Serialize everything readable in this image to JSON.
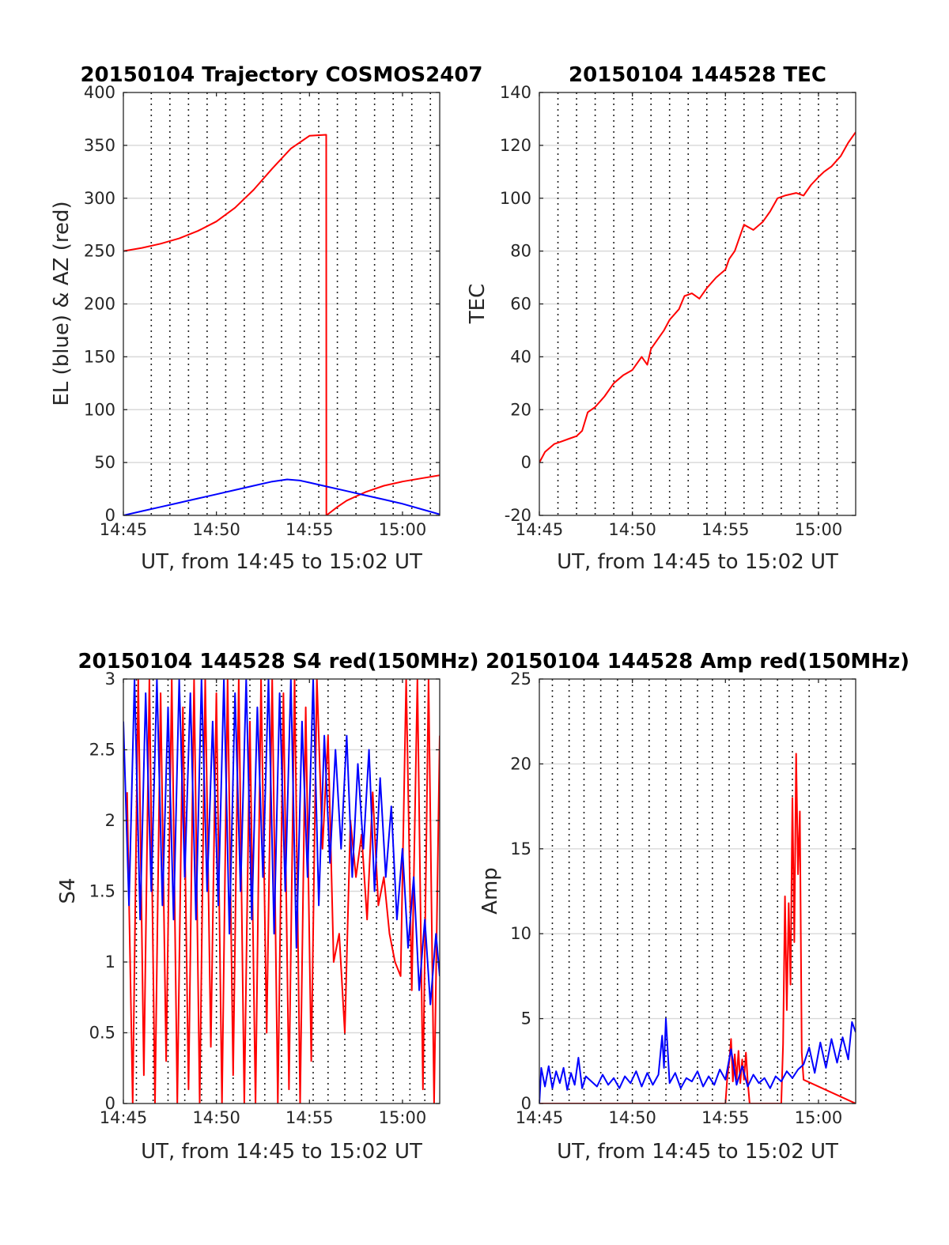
{
  "chart_data": [
    {
      "type": "line",
      "title": "20150104 Trajectory COSMOS2407",
      "xlabel": "UT, from 14:45 to 15:02 UT",
      "ylabel": "EL (blue) & AZ (red)",
      "xlim": [
        0,
        17
      ],
      "ylim": [
        0,
        400
      ],
      "xticks": [
        0,
        5,
        10,
        15
      ],
      "xticklabels": [
        "14:45",
        "14:50",
        "14:55",
        "15:00"
      ],
      "yticks": [
        0,
        50,
        100,
        150,
        200,
        250,
        300,
        350,
        400
      ],
      "yticklabels": [
        "0",
        "50",
        "100",
        "150",
        "200",
        "250",
        "300",
        "350",
        "400"
      ],
      "vgrid_minutes": [
        1.5,
        2.5,
        3.5,
        4.5,
        5.5,
        6.5,
        7.5,
        8.5,
        9.5,
        10.5,
        11.5,
        12.5,
        13.5,
        14.5,
        15.5,
        16.5
      ],
      "grid": true,
      "series": [
        {
          "color": "#ff0000",
          "x": [
            0,
            1,
            2,
            3,
            4,
            5,
            6,
            7,
            8,
            9,
            10,
            10.9,
            10.91,
            11.5,
            12,
            13,
            14,
            15,
            16,
            17
          ],
          "y": [
            250,
            253,
            257,
            262,
            269,
            278,
            291,
            308,
            328,
            347,
            359,
            360,
            0,
            8,
            14,
            22,
            28,
            32,
            35,
            38
          ]
        },
        {
          "color": "#0000ff",
          "x": [
            0,
            1,
            2,
            3,
            4,
            5,
            6,
            7,
            8,
            8.8,
            9.5,
            10,
            11,
            12,
            13,
            14,
            15,
            16,
            17
          ],
          "y": [
            0,
            4,
            8,
            12,
            16,
            20,
            24,
            28,
            32,
            34,
            33,
            31,
            27,
            23,
            19,
            15,
            11,
            6,
            1
          ]
        }
      ]
    },
    {
      "type": "line",
      "title": "20150104 144528 TEC",
      "xlabel": "UT, from 14:45 to 15:02 UT",
      "ylabel": "TEC",
      "xlim": [
        0,
        17
      ],
      "ylim": [
        -20,
        140
      ],
      "xticks": [
        0,
        5,
        10,
        15
      ],
      "xticklabels": [
        "14:45",
        "14:50",
        "14:55",
        "15:00"
      ],
      "yticks": [
        -20,
        0,
        20,
        40,
        60,
        80,
        100,
        120,
        140
      ],
      "yticklabels": [
        "-20",
        "0",
        "20",
        "40",
        "60",
        "80",
        "100",
        "120",
        "140"
      ],
      "vgrid_minutes": [
        1,
        2,
        3,
        4,
        5,
        6,
        7,
        8,
        9,
        10,
        11,
        12,
        13,
        14,
        15,
        16
      ],
      "grid": true,
      "series": [
        {
          "color": "#ff0000",
          "x": [
            0,
            0.3,
            0.8,
            1.2,
            1.6,
            2.0,
            2.3,
            2.6,
            3.0,
            3.5,
            4.0,
            4.5,
            5.0,
            5.3,
            5.5,
            5.8,
            6.0,
            6.3,
            6.7,
            7.0,
            7.5,
            7.8,
            8.2,
            8.6,
            9.0,
            9.5,
            10.0,
            10.2,
            10.5,
            10.8,
            11.0,
            11.5,
            12.0,
            12.4,
            12.8,
            13.2,
            13.8,
            14.2,
            14.6,
            15.0,
            15.3,
            15.7,
            16.2,
            16.6,
            17.0
          ],
          "y": [
            0,
            4,
            7,
            8,
            9,
            10,
            12,
            19,
            21,
            25,
            30,
            33,
            35,
            38,
            40,
            37,
            43,
            46,
            50,
            54,
            58,
            63,
            64,
            62,
            66,
            70,
            73,
            77,
            80,
            86,
            90,
            88,
            91,
            95,
            100,
            101,
            102,
            101,
            105,
            108,
            110,
            112,
            116,
            121,
            125
          ]
        }
      ]
    },
    {
      "type": "line",
      "title": "20150104 144528 S4 red(150MHz)",
      "xlabel": "UT, from 14:45 to 15:02 UT",
      "ylabel": "S4",
      "xlim": [
        0,
        17
      ],
      "ylim": [
        0,
        3
      ],
      "xticks": [
        0,
        5,
        10,
        15
      ],
      "xticklabels": [
        "14:45",
        "14:50",
        "14:55",
        "15:00"
      ],
      "yticks": [
        0,
        0.5,
        1,
        1.5,
        2,
        2.5,
        3
      ],
      "yticklabels": [
        "0",
        "0.5",
        "1",
        "1.5",
        "2",
        "2.5",
        "3"
      ],
      "vgrid_minutes": [
        0.7,
        1.6,
        2.4,
        3.3,
        4.2,
        5.0,
        5.9,
        6.8,
        7.6,
        8.5,
        9.3,
        10.2,
        11.0,
        11.9,
        12.8,
        13.6,
        14.5,
        15.4,
        16.2
      ],
      "grid": true,
      "series": [
        {
          "color": "#ff0000",
          "x": [
            0.2,
            0.5,
            0.8,
            1.1,
            1.4,
            1.7,
            2.0,
            2.3,
            2.6,
            2.9,
            3.2,
            3.5,
            3.8,
            4.1,
            4.4,
            4.7,
            5.0,
            5.3,
            5.6,
            5.9,
            6.2,
            6.5,
            6.8,
            7.1,
            7.4,
            7.7,
            8.0,
            8.3,
            8.6,
            8.9,
            9.2,
            9.5,
            9.8,
            10.1,
            10.4,
            10.7,
            11.0,
            11.3,
            11.6,
            11.9,
            12.2,
            12.5,
            12.8,
            13.1,
            13.4,
            13.7,
            14.0,
            14.3,
            14.6,
            14.9,
            15.2,
            15.5,
            15.8,
            16.1,
            16.4,
            16.7,
            17.0
          ],
          "y": [
            2.2,
            0,
            3,
            0.2,
            3,
            0,
            2.9,
            0.3,
            3,
            0,
            2.8,
            0.1,
            3,
            0,
            3,
            0.4,
            2.9,
            0,
            3,
            0.2,
            3,
            0,
            2.7,
            0,
            3,
            0.5,
            3,
            0,
            2.9,
            0.1,
            3,
            0,
            2.8,
            0.3,
            3,
            1.8,
            2.6,
            1.0,
            1.2,
            0.5,
            2.0,
            1.6,
            1.9,
            1.3,
            2.2,
            1.4,
            1.6,
            1.2,
            1.0,
            0.9,
            3,
            0.8,
            3,
            0.1,
            3,
            0,
            2.6
          ]
        },
        {
          "color": "#0000ff",
          "x": [
            0,
            0.3,
            0.6,
            0.9,
            1.2,
            1.5,
            1.8,
            2.1,
            2.4,
            2.7,
            3.0,
            3.3,
            3.6,
            3.9,
            4.2,
            4.5,
            4.8,
            5.1,
            5.4,
            5.7,
            6.0,
            6.3,
            6.6,
            6.9,
            7.2,
            7.5,
            7.8,
            8.1,
            8.4,
            8.7,
            9.0,
            9.3,
            9.6,
            9.9,
            10.2,
            10.5,
            10.8,
            11.1,
            11.4,
            11.7,
            12.0,
            12.3,
            12.6,
            12.9,
            13.2,
            13.5,
            13.8,
            14.1,
            14.4,
            14.7,
            15.0,
            15.3,
            15.6,
            15.9,
            16.2,
            16.5,
            16.8,
            17.0
          ],
          "y": [
            2.7,
            1.4,
            3,
            1.3,
            2.9,
            1.5,
            3,
            1.4,
            2.8,
            1.3,
            3,
            1.6,
            2.9,
            1.3,
            3,
            1.5,
            2.7,
            1.4,
            3,
            1.2,
            2.9,
            1.5,
            3,
            1.3,
            2.8,
            1.6,
            3,
            1.2,
            2.9,
            1.5,
            3,
            1.1,
            2.7,
            1.6,
            3,
            1.4,
            2.6,
            1.7,
            2.5,
            1.8,
            2.6,
            1.6,
            2.4,
            1.8,
            2.5,
            1.5,
            2.3,
            1.6,
            2.1,
            1.3,
            1.8,
            1.1,
            1.6,
            0.8,
            1.3,
            0.7,
            1.2,
            0.9
          ]
        }
      ]
    },
    {
      "type": "line",
      "title": "20150104 144528 Amp red(150MHz)",
      "xlabel": "UT, from 14:45 to 15:02 UT",
      "ylabel": "Amp",
      "xlim": [
        0,
        17
      ],
      "ylim": [
        0,
        25
      ],
      "xticks": [
        0,
        5,
        10,
        15
      ],
      "xticklabels": [
        "14:45",
        "14:50",
        "14:55",
        "15:00"
      ],
      "yticks": [
        0,
        5,
        10,
        15,
        20,
        25
      ],
      "yticklabels": [
        "0",
        "5",
        "10",
        "15",
        "20",
        "25"
      ],
      "vgrid_minutes": [
        0.7,
        1.6,
        2.4,
        3.3,
        4.2,
        5.0,
        5.9,
        6.8,
        7.6,
        8.5,
        9.3,
        10.2,
        11.0,
        11.9,
        12.8,
        13.6,
        14.5,
        15.4,
        16.2
      ],
      "grid": true,
      "series": [
        {
          "color": "#ff0000",
          "x": [
            0,
            10.0,
            10.1,
            10.2,
            10.3,
            10.4,
            10.5,
            10.6,
            10.7,
            10.8,
            10.9,
            11.0,
            11.1,
            11.2,
            11.3,
            13.0,
            13.1,
            13.2,
            13.3,
            13.4,
            13.5,
            13.6,
            13.7,
            13.8,
            13.9,
            14.0,
            14.1,
            14.2,
            17.0
          ],
          "y": [
            0,
            0,
            1.5,
            2.4,
            3.8,
            1.3,
            2.9,
            1.4,
            3.1,
            1.2,
            2.6,
            1.4,
            3.0,
            1.3,
            0,
            0,
            3.5,
            12.2,
            5.5,
            11.8,
            7.0,
            18.0,
            9.5,
            20.6,
            13.5,
            17.2,
            3.0,
            1.4,
            0
          ]
        },
        {
          "color": "#0000ff",
          "x": [
            0,
            0.1,
            0.3,
            0.5,
            0.7,
            0.9,
            1.1,
            1.3,
            1.5,
            1.7,
            1.9,
            2.1,
            2.3,
            2.5,
            2.8,
            3.1,
            3.4,
            3.7,
            4.0,
            4.3,
            4.6,
            4.9,
            5.2,
            5.5,
            5.8,
            6.1,
            6.4,
            6.6,
            6.7,
            6.8,
            7.0,
            7.3,
            7.6,
            7.9,
            8.2,
            8.5,
            8.8,
            9.1,
            9.4,
            9.7,
            10.0,
            10.3,
            10.6,
            10.9,
            11.2,
            11.5,
            11.8,
            12.1,
            12.4,
            12.7,
            13.0,
            13.3,
            13.6,
            13.9,
            14.2,
            14.5,
            14.8,
            15.1,
            15.4,
            15.7,
            16.0,
            16.3,
            16.6,
            16.8,
            17.0
          ],
          "y": [
            0,
            2.1,
            1.0,
            2.2,
            0.9,
            1.9,
            1.2,
            2.1,
            0.8,
            1.8,
            1.1,
            2.7,
            0.9,
            1.6,
            1.3,
            1.0,
            1.7,
            1.1,
            1.5,
            0.9,
            1.6,
            1.2,
            1.9,
            1.0,
            1.8,
            1.1,
            1.7,
            4.0,
            2.1,
            5.0,
            1.2,
            1.8,
            0.9,
            1.5,
            1.3,
            1.9,
            1.0,
            1.6,
            1.1,
            2.0,
            1.4,
            3.2,
            1.1,
            2.2,
            1.0,
            1.7,
            1.2,
            1.5,
            0.9,
            1.6,
            1.3,
            1.9,
            1.5,
            2.0,
            2.3,
            3.3,
            1.8,
            3.6,
            2.1,
            3.8,
            2.4,
            3.9,
            2.6,
            4.8,
            4.2
          ]
        }
      ]
    }
  ]
}
